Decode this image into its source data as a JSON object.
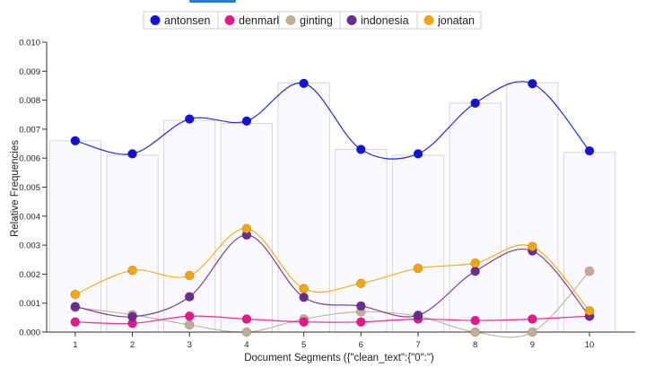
{
  "chart_data": {
    "type": "line",
    "xlabel": "Document Segments ({\"clean_text\":{\"0\":\")",
    "ylabel": "Relative Frequencies",
    "x": [
      1,
      2,
      3,
      4,
      5,
      6,
      7,
      8,
      9,
      10
    ],
    "ylim": [
      0,
      0.01
    ],
    "yticks": [
      "0.000",
      "0.001",
      "0.002",
      "0.003",
      "0.004",
      "0.005",
      "0.006",
      "0.007",
      "0.008",
      "0.009",
      "0.010"
    ],
    "legend_position": "top-center",
    "bars": [
      0.0066,
      0.0061,
      0.0073,
      0.0072,
      0.0086,
      0.0063,
      0.0061,
      0.0079,
      0.0086,
      0.0062
    ],
    "series": [
      {
        "name": "antonsen",
        "color": "#1313d6",
        "values": [
          0.0066,
          0.00615,
          0.00735,
          0.00728,
          0.00858,
          0.0063,
          0.00615,
          0.0079,
          0.00857,
          0.00625
        ]
      },
      {
        "name": "denmark",
        "color": "#e8168f",
        "values": [
          0.00035,
          0.0003,
          0.00055,
          0.00045,
          0.00035,
          0.00035,
          0.00045,
          0.0004,
          0.00045,
          0.00055
        ]
      },
      {
        "name": "ginting",
        "color": "#c1ad96",
        "values": [
          0.00085,
          0.0006,
          0.00025,
          0.0,
          0.00045,
          0.0007,
          0.00055,
          0.0,
          0.0,
          0.0021
        ]
      },
      {
        "name": "indonesia",
        "color": "#6a2c91",
        "values": [
          0.00088,
          0.00053,
          0.00122,
          0.00335,
          0.0012,
          0.0009,
          0.00058,
          0.0021,
          0.0028,
          0.00055
        ]
      },
      {
        "name": "jonatan",
        "color": "#f2a60c",
        "values": [
          0.0013,
          0.00213,
          0.00195,
          0.00357,
          0.0015,
          0.00168,
          0.0022,
          0.00238,
          0.00295,
          0.00073
        ]
      }
    ]
  }
}
